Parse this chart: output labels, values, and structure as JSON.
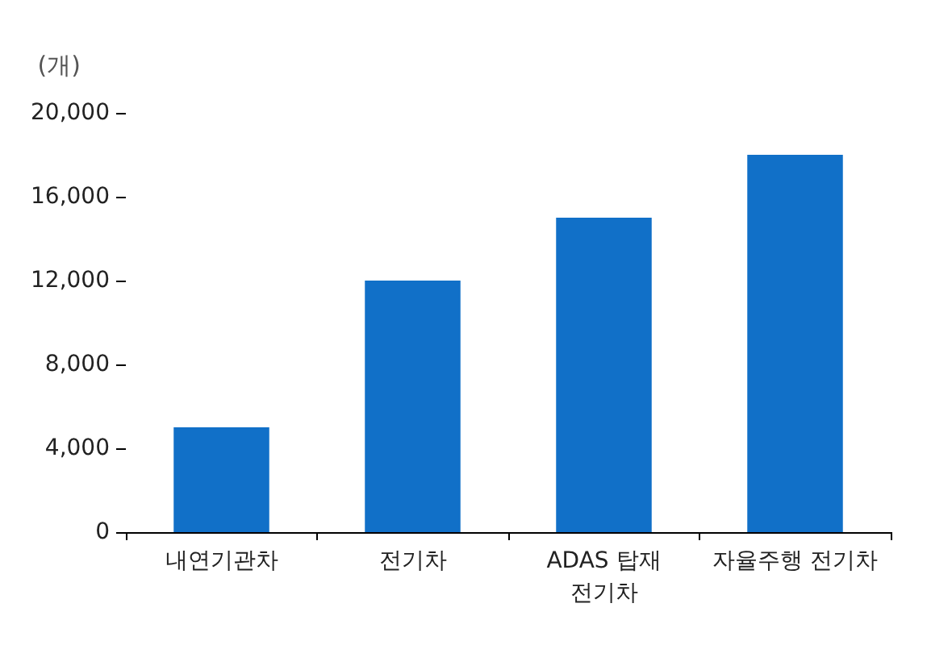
{
  "chart_data": {
    "type": "bar",
    "ylabel": "(개)",
    "categories": [
      "내연기관차",
      "전기차",
      "ADAS 탑재\n전기차",
      "자율주행 전기차"
    ],
    "values": [
      5000,
      12000,
      15000,
      18000
    ],
    "color": "#1170c8",
    "ylim": [
      0,
      20000
    ],
    "yticks": [
      0,
      {
        "value": 4000,
        "label": "4,000"
      },
      {
        "value": 8000,
        "label": "8,000"
      },
      {
        "value": 12000,
        "label": "12,000"
      },
      {
        "value": 16000,
        "label": "16,000"
      },
      {
        "value": 20000,
        "label": "20,000"
      }
    ],
    "grid": false
  }
}
